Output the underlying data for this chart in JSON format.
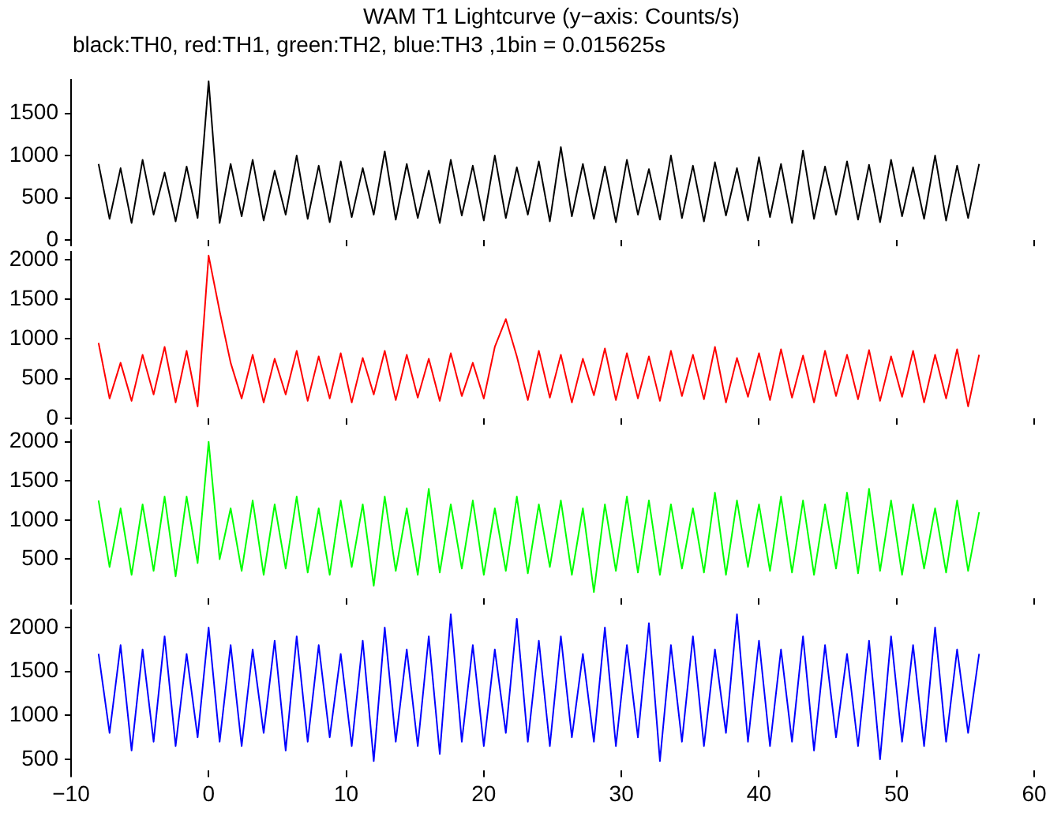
{
  "chart_data": [
    {
      "type": "line",
      "title": "WAM T1 Lightcurve (y−axis: Counts/s)",
      "subtitle": "black:TH0, red:TH1, green:TH2, blue:TH3 ,1bin = 0.015625s",
      "x": [
        -8,
        -7.2,
        -6.4,
        -5.6,
        -4.8,
        -4,
        -3.2,
        -2.4,
        -1.6,
        -0.8,
        0,
        0.8,
        1.6,
        2.4,
        3.2,
        4,
        4.8,
        5.6,
        6.4,
        7.2,
        8,
        8.8,
        9.6,
        10.4,
        11.2,
        12,
        12.8,
        13.6,
        14.4,
        15.2,
        16,
        16.8,
        17.6,
        18.4,
        19.2,
        20,
        20.8,
        21.6,
        22.4,
        23.2,
        24,
        24.8,
        25.6,
        26.4,
        27.2,
        28,
        28.8,
        29.6,
        30.4,
        31.2,
        32,
        32.8,
        33.6,
        34.4,
        35.2,
        36,
        36.8,
        37.6,
        38.4,
        39.2,
        40,
        40.8,
        41.6,
        42.4,
        43.2,
        44,
        44.8,
        45.6,
        46.4,
        47.2,
        48,
        48.8,
        49.6,
        50.4,
        51.2,
        52,
        52.8,
        53.6,
        54.4,
        55.2,
        56
      ],
      "series": [
        {
          "color": "#000000",
          "values": [
            900,
            250,
            850,
            200,
            950,
            300,
            800,
            220,
            870,
            260,
            1880,
            200,
            900,
            280,
            950,
            230,
            820,
            300,
            1000,
            250,
            880,
            210,
            930,
            270,
            850,
            300,
            1050,
            240,
            900,
            260,
            820,
            200,
            950,
            290,
            880,
            230,
            1000,
            260,
            860,
            300,
            930,
            220,
            1100,
            280,
            900,
            250,
            870,
            210,
            950,
            300,
            840,
            240,
            1000,
            260,
            880,
            220,
            920,
            290,
            850,
            230,
            980,
            270,
            900,
            200,
            1060,
            250,
            870,
            300,
            930,
            240,
            890,
            210,
            950,
            280,
            860,
            250,
            1000,
            230,
            880,
            260,
            900
          ]
        }
      ],
      "xlim": [
        -10,
        60
      ],
      "xticks": [
        -10,
        0,
        10,
        20,
        30,
        40,
        50,
        60
      ],
      "ylim": [
        0,
        1900
      ],
      "yticks": [
        0,
        500,
        1000,
        1500
      ],
      "grid": false,
      "legend": false,
      "tick_labels": "y"
    },
    {
      "type": "line",
      "x": [
        -8,
        -7.2,
        -6.4,
        -5.6,
        -4.8,
        -4,
        -3.2,
        -2.4,
        -1.6,
        -0.8,
        0,
        0.8,
        1.6,
        2.4,
        3.2,
        4,
        4.8,
        5.6,
        6.4,
        7.2,
        8,
        8.8,
        9.6,
        10.4,
        11.2,
        12,
        12.8,
        13.6,
        14.4,
        15.2,
        16,
        16.8,
        17.6,
        18.4,
        19.2,
        20,
        20.8,
        21.6,
        22.4,
        23.2,
        24,
        24.8,
        25.6,
        26.4,
        27.2,
        28,
        28.8,
        29.6,
        30.4,
        31.2,
        32,
        32.8,
        33.6,
        34.4,
        35.2,
        36,
        36.8,
        37.6,
        38.4,
        39.2,
        40,
        40.8,
        41.6,
        42.4,
        43.2,
        44,
        44.8,
        45.6,
        46.4,
        47.2,
        48,
        48.8,
        49.6,
        50.4,
        51.2,
        52,
        52.8,
        53.6,
        54.4,
        55.2,
        56
      ],
      "series": [
        {
          "color": "#ff0000",
          "values": [
            950,
            250,
            700,
            220,
            800,
            300,
            900,
            200,
            850,
            150,
            2050,
            1350,
            700,
            250,
            800,
            200,
            750,
            300,
            850,
            220,
            780,
            250,
            820,
            200,
            760,
            300,
            850,
            230,
            800,
            260,
            750,
            220,
            820,
            280,
            700,
            250,
            900,
            1250,
            780,
            230,
            850,
            260,
            800,
            200,
            750,
            290,
            880,
            230,
            820,
            250,
            780,
            220,
            850,
            280,
            800,
            240,
            900,
            200,
            760,
            270,
            820,
            230,
            870,
            260,
            790,
            200,
            850,
            280,
            800,
            240,
            860,
            220,
            780,
            270,
            850,
            200,
            800,
            250,
            870,
            150,
            800
          ]
        }
      ],
      "xlim": [
        -10,
        60
      ],
      "xticks": [
        -10,
        0,
        10,
        20,
        30,
        40,
        50,
        60
      ],
      "ylim": [
        0,
        2100
      ],
      "yticks": [
        0,
        500,
        1000,
        1500,
        2000
      ],
      "grid": false,
      "legend": false,
      "tick_labels": "y"
    },
    {
      "type": "line",
      "x": [
        -8,
        -7.2,
        -6.4,
        -5.6,
        -4.8,
        -4,
        -3.2,
        -2.4,
        -1.6,
        -0.8,
        0,
        0.8,
        1.6,
        2.4,
        3.2,
        4,
        4.8,
        5.6,
        6.4,
        7.2,
        8,
        8.8,
        9.6,
        10.4,
        11.2,
        12,
        12.8,
        13.6,
        14.4,
        15.2,
        16,
        16.8,
        17.6,
        18.4,
        19.2,
        20,
        20.8,
        21.6,
        22.4,
        23.2,
        24,
        24.8,
        25.6,
        26.4,
        27.2,
        28,
        28.8,
        29.6,
        30.4,
        31.2,
        32,
        32.8,
        33.6,
        34.4,
        35.2,
        36,
        36.8,
        37.6,
        38.4,
        39.2,
        40,
        40.8,
        41.6,
        42.4,
        43.2,
        44,
        44.8,
        45.6,
        46.4,
        47.2,
        48,
        48.8,
        49.6,
        50.4,
        51.2,
        52,
        52.8,
        53.6,
        54.4,
        55.2,
        56
      ],
      "series": [
        {
          "color": "#00ff00",
          "values": [
            1250,
            400,
            1150,
            300,
            1200,
            350,
            1300,
            280,
            1300,
            450,
            2000,
            500,
            1150,
            350,
            1250,
            300,
            1200,
            380,
            1300,
            330,
            1150,
            300,
            1250,
            400,
            1200,
            160,
            1300,
            350,
            1150,
            300,
            1400,
            330,
            1200,
            380,
            1250,
            300,
            1150,
            350,
            1300,
            320,
            1200,
            400,
            1250,
            300,
            1150,
            80,
            1200,
            350,
            1300,
            330,
            1250,
            300,
            1200,
            380,
            1150,
            330,
            1350,
            300,
            1250,
            400,
            1200,
            350,
            1300,
            330,
            1250,
            300,
            1200,
            380,
            1350,
            320,
            1400,
            350,
            1250,
            300,
            1200,
            380,
            1150,
            330,
            1250,
            350,
            1100
          ]
        }
      ],
      "xlim": [
        -10,
        60
      ],
      "xticks": [
        -10,
        0,
        10,
        20,
        30,
        40,
        50,
        60
      ],
      "ylim": [
        0,
        2150
      ],
      "yticks": [
        500,
        1000,
        1500,
        2000
      ],
      "grid": false,
      "legend": false,
      "tick_labels": "y"
    },
    {
      "type": "line",
      "x": [
        -8,
        -7.2,
        -6.4,
        -5.6,
        -4.8,
        -4,
        -3.2,
        -2.4,
        -1.6,
        -0.8,
        0,
        0.8,
        1.6,
        2.4,
        3.2,
        4,
        4.8,
        5.6,
        6.4,
        7.2,
        8,
        8.8,
        9.6,
        10.4,
        11.2,
        12,
        12.8,
        13.6,
        14.4,
        15.2,
        16,
        16.8,
        17.6,
        18.4,
        19.2,
        20,
        20.8,
        21.6,
        22.4,
        23.2,
        24,
        24.8,
        25.6,
        26.4,
        27.2,
        28,
        28.8,
        29.6,
        30.4,
        31.2,
        32,
        32.8,
        33.6,
        34.4,
        35.2,
        36,
        36.8,
        37.6,
        38.4,
        39.2,
        40,
        40.8,
        41.6,
        42.4,
        43.2,
        44,
        44.8,
        45.6,
        46.4,
        47.2,
        48,
        48.8,
        49.6,
        50.4,
        51.2,
        52,
        52.8,
        53.6,
        54.4,
        55.2,
        56
      ],
      "series": [
        {
          "color": "#0000ff",
          "values": [
            1700,
            800,
            1800,
            600,
            1750,
            700,
            1900,
            650,
            1700,
            750,
            2000,
            700,
            1800,
            650,
            1750,
            800,
            1850,
            600,
            1900,
            700,
            1800,
            750,
            1700,
            650,
            1850,
            480,
            2000,
            700,
            1750,
            650,
            1900,
            560,
            2150,
            700,
            1800,
            650,
            1750,
            800,
            2100,
            700,
            1850,
            650,
            1900,
            750,
            1700,
            700,
            2000,
            650,
            1800,
            750,
            2050,
            480,
            1800,
            700,
            1900,
            650,
            1750,
            800,
            2150,
            700,
            1850,
            650,
            1750,
            700,
            1900,
            600,
            1800,
            750,
            1700,
            650,
            1850,
            500,
            1900,
            700,
            1800,
            650,
            2000,
            700,
            1750,
            800,
            1700
          ]
        }
      ],
      "xlim": [
        -10,
        60
      ],
      "xticks": [
        -10,
        0,
        10,
        20,
        30,
        40,
        50,
        60
      ],
      "ylim": [
        370,
        2200
      ],
      "yticks": [
        500,
        1000,
        1500,
        2000
      ],
      "grid": false,
      "legend": false
    }
  ]
}
